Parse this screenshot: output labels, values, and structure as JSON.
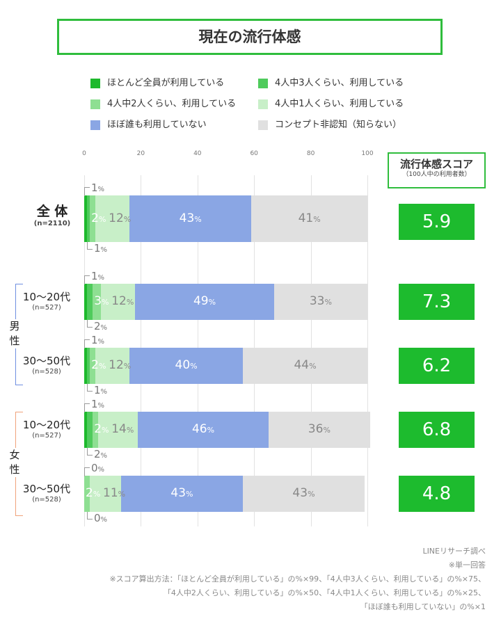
{
  "title": "現在の流行体感",
  "colors": {
    "accent": "#2fbd3c",
    "score_bg": "#1dbb2e",
    "male": "#6f8fe0",
    "female": "#f0a27a"
  },
  "chart_data": {
    "type": "bar",
    "orientation": "horizontal",
    "stacked": true,
    "xlim": [
      0,
      100
    ],
    "x_ticks": [
      "0",
      "20",
      "40",
      "60",
      "80",
      "100"
    ],
    "grid": true,
    "legend_position": "top",
    "legend": [
      "ほとんど全員が利用している",
      "4人中3人くらい、利用している",
      "4人中2人くらい、利用している",
      "4人中1人くらい、利用している",
      "ほぼ誰も利用していない",
      "コンセプト非認知（知らない）"
    ],
    "series_colors": [
      "#1db92c",
      "#4fcb5c",
      "#8edf92",
      "#c8efc8",
      "#8aa6e4",
      "#e0e0e0"
    ],
    "rows": [
      {
        "label": "全 体",
        "n": "(n=2110)",
        "values": [
          1,
          1,
          2,
          12,
          43,
          41
        ],
        "score": "5.9"
      },
      {
        "label": "10〜20代",
        "n": "(n=527)",
        "group": "男性",
        "values": [
          1,
          2,
          3,
          12,
          49,
          33
        ],
        "score": "7.3"
      },
      {
        "label": "30〜50代",
        "n": "(n=528)",
        "group": "男性",
        "values": [
          1,
          1,
          2,
          12,
          40,
          44
        ],
        "score": "6.2"
      },
      {
        "label": "10〜20代",
        "n": "(n=527)",
        "group": "女性",
        "values": [
          1,
          2,
          2,
          14,
          46,
          36
        ],
        "score": "6.8"
      },
      {
        "label": "30〜50代",
        "n": "(n=528)",
        "group": "女性",
        "values": [
          0,
          0,
          2,
          11,
          43,
          43
        ],
        "score": "4.8"
      }
    ],
    "groups": [
      "男 性",
      "女 性"
    ]
  },
  "score_header": {
    "title": "流行体感スコア",
    "sub": "（100人中の利用者数）"
  },
  "notes": [
    "LINEリサーチ調べ",
    "※単一回答",
    "※スコア算出方法：「ほとんど全員が利用している」の%×99、「4人中3人くらい、利用している」の%×75、",
    "「4人中2人くらい、利用している」の%×50、「4人中1人くらい、利用している」の%×25、",
    "「ほぼ誰も利用していない」の%×1"
  ]
}
